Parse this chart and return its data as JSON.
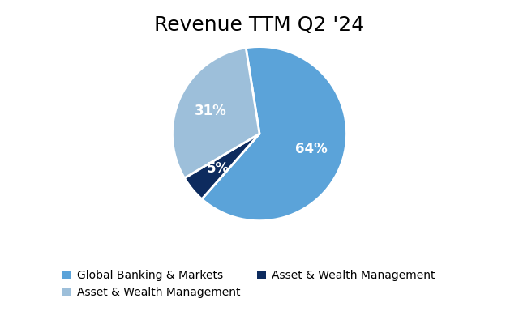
{
  "title": "Revenue TTM Q2 '24",
  "wedge_sizes": [
    64,
    31,
    5
  ],
  "wedge_colors": [
    "#5ba3d9",
    "#9dbfda",
    "#0d2b5e"
  ],
  "wedge_labels": [
    "64%",
    "31%",
    "5%"
  ],
  "legend_labels": [
    "Global Banking & Markets",
    "Asset & Wealth Management",
    "Asset & Wealth Management"
  ],
  "legend_colors": [
    "#5ba3d9",
    "#9dbfda",
    "#0d2b5e"
  ],
  "bg_color": "#ffffff",
  "title_fontsize": 18,
  "label_fontsize": 12,
  "legend_fontsize": 10,
  "startangle": 108
}
